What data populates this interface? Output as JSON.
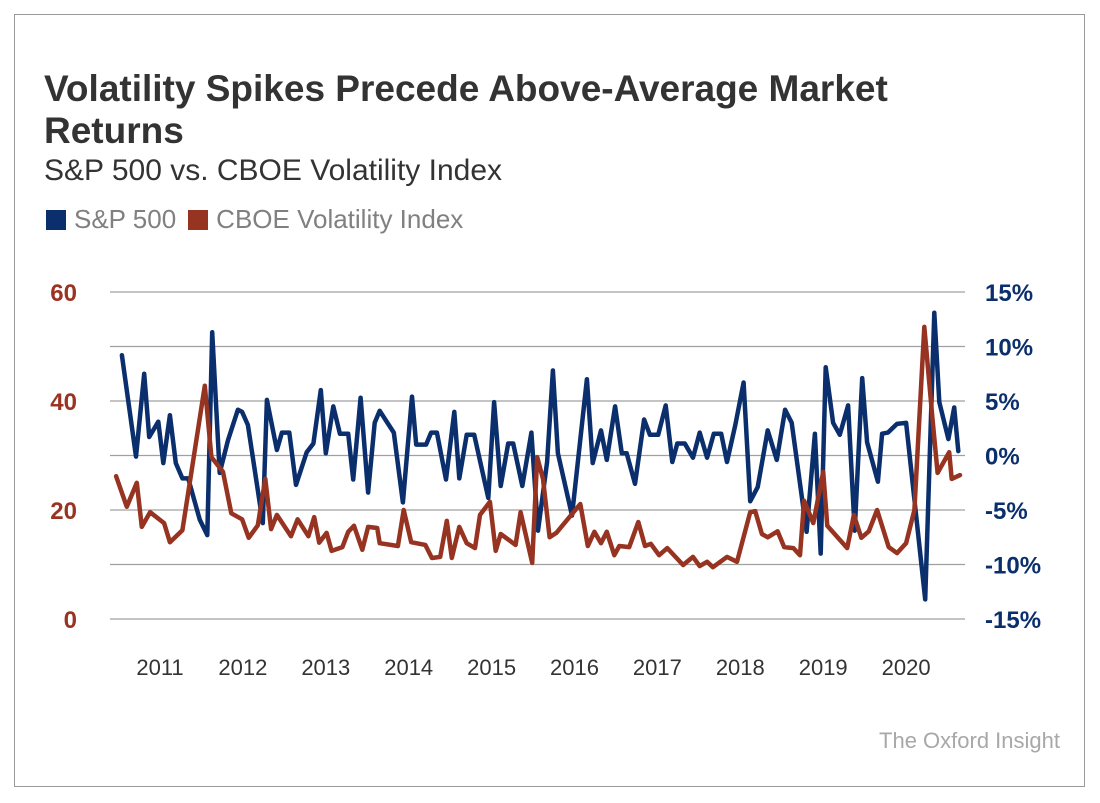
{
  "title": "Volatility Spikes Precede Above-Average Market Returns",
  "subtitle": "S&P 500 vs. CBOE Volatility Index",
  "credit": "The Oxford Insight",
  "colors": {
    "sp500": "#0a2f6c",
    "vix": "#973321",
    "grid": "#a0a0a0"
  },
  "chart_data": {
    "type": "line",
    "title": "Volatility Spikes Precede Above-Average Market Returns",
    "subtitle": "S&P 500 vs. CBOE Volatility Index",
    "legend": {
      "position": "top-left",
      "entries": [
        "S&P 500",
        "CBOE Volatility Index"
      ]
    },
    "grid": true,
    "x_ticks": [
      "2011",
      "2012",
      "2013",
      "2014",
      "2015",
      "2016",
      "2017",
      "2018",
      "2019",
      "2020"
    ],
    "xlim": [
      2010.4,
      2020.7
    ],
    "left_axis": {
      "ylim": [
        0,
        60
      ],
      "ticks": [
        "0",
        "20",
        "40",
        "60"
      ],
      "series": "CBOE Volatility Index"
    },
    "right_axis": {
      "ylim": [
        -15,
        15
      ],
      "ticks": [
        "-15%",
        "-10%",
        "-5%",
        "0%",
        "5%",
        "10%",
        "15%"
      ],
      "series": "S&P 500"
    },
    "series": [
      {
        "name": "S&P 500",
        "axis": "right",
        "unit": "%",
        "x": [
          2010.54,
          2010.71,
          2010.81,
          2010.87,
          2010.98,
          2011.04,
          2011.12,
          2011.19,
          2011.27,
          2011.34,
          2011.48,
          2011.57,
          2011.63,
          2011.72,
          2011.82,
          2011.94,
          2011.99,
          2012.06,
          2012.24,
          2012.29,
          2012.41,
          2012.47,
          2012.56,
          2012.64,
          2012.77,
          2012.85,
          2012.94,
          2013.0,
          2013.09,
          2013.17,
          2013.27,
          2013.33,
          2013.42,
          2013.51,
          2013.59,
          2013.65,
          2013.82,
          2013.93,
          2014.04,
          2014.09,
          2014.21,
          2014.27,
          2014.34,
          2014.45,
          2014.55,
          2014.61,
          2014.7,
          2014.79,
          2014.96,
          2015.03,
          2015.11,
          2015.2,
          2015.26,
          2015.37,
          2015.48,
          2015.56,
          2015.67,
          2015.74,
          2015.8,
          2015.97,
          2016.15,
          2016.22,
          2016.32,
          2016.39,
          2016.49,
          2016.57,
          2016.63,
          2016.73,
          2016.84,
          2016.91,
          2017.01,
          2017.1,
          2017.18,
          2017.24,
          2017.33,
          2017.43,
          2017.51,
          2017.6,
          2017.68,
          2017.77,
          2017.84,
          2017.94,
          2018.04,
          2018.12,
          2018.21,
          2018.33,
          2018.44,
          2018.54,
          2018.62,
          2018.8,
          2018.9,
          2018.97,
          2019.03,
          2019.12,
          2019.2,
          2019.3,
          2019.38,
          2019.47,
          2019.53,
          2019.66,
          2019.71,
          2019.78,
          2019.89,
          2020.0,
          2020.23,
          2020.34,
          2020.4,
          2020.51,
          2020.58,
          2020.63
        ],
        "y": [
          9.2,
          -0.1,
          7.5,
          1.7,
          3.1,
          -0.7,
          3.7,
          -0.7,
          -2.1,
          -2.1,
          -5.9,
          -7.3,
          11.3,
          -1.6,
          1.4,
          4.2,
          4.0,
          2.8,
          -6.2,
          5.1,
          0.5,
          2.1,
          2.1,
          -2.7,
          0.3,
          1.1,
          6.0,
          0.2,
          4.5,
          2.0,
          2.0,
          -2.2,
          5.3,
          -3.4,
          3.0,
          4.1,
          2.1,
          -4.3,
          5.4,
          1.0,
          1.0,
          2.1,
          2.1,
          -2.2,
          4.0,
          -2.1,
          1.9,
          1.9,
          -3.9,
          4.9,
          -2.8,
          1.1,
          1.1,
          -2.8,
          2.1,
          -6.9,
          -0.6,
          7.8,
          0.2,
          -5.5,
          7.0,
          -0.7,
          2.3,
          -0.4,
          4.5,
          0.2,
          0.2,
          -2.6,
          3.3,
          1.9,
          1.9,
          4.6,
          -0.6,
          1.1,
          1.1,
          -0.2,
          2.1,
          -0.2,
          2.0,
          2.0,
          -0.6,
          2.8,
          6.7,
          -4.2,
          -2.9,
          2.3,
          -0.4,
          4.2,
          3.0,
          -7.0,
          2.0,
          -9.0,
          8.1,
          3.0,
          1.9,
          4.6,
          -6.9,
          7.1,
          1.2,
          -2.4,
          2.0,
          2.1,
          2.9,
          3.0,
          -13.2,
          13.1,
          4.9,
          1.5,
          4.4,
          0.4
        ]
      },
      {
        "name": "CBOE Volatility Index",
        "axis": "left",
        "unit": "",
        "x": [
          2010.47,
          2010.6,
          2010.72,
          2010.78,
          2010.88,
          2011.05,
          2011.12,
          2011.27,
          2011.54,
          2011.62,
          2011.76,
          2011.86,
          2011.99,
          2012.07,
          2012.18,
          2012.27,
          2012.34,
          2012.41,
          2012.58,
          2012.66,
          2012.79,
          2012.86,
          2012.92,
          2013.01,
          2013.07,
          2013.2,
          2013.27,
          2013.34,
          2013.44,
          2013.51,
          2013.62,
          2013.65,
          2013.87,
          2013.94,
          2014.03,
          2014.2,
          2014.28,
          2014.38,
          2014.46,
          2014.52,
          2014.61,
          2014.7,
          2014.8,
          2014.86,
          2014.98,
          2015.05,
          2015.11,
          2015.29,
          2015.35,
          2015.49,
          2015.55,
          2015.62,
          2015.7,
          2015.78,
          2016.07,
          2016.16,
          2016.24,
          2016.32,
          2016.39,
          2016.48,
          2016.54,
          2016.66,
          2016.77,
          2016.85,
          2016.92,
          2017.02,
          2017.12,
          2017.31,
          2017.43,
          2017.51,
          2017.6,
          2017.67,
          2017.84,
          2017.96,
          2018.12,
          2018.18,
          2018.26,
          2018.33,
          2018.45,
          2018.53,
          2018.64,
          2018.72,
          2018.77,
          2018.88,
          2019.0,
          2019.05,
          2019.29,
          2019.37,
          2019.46,
          2019.55,
          2019.65,
          2019.79,
          2019.89,
          2020.0,
          2020.1,
          2020.22,
          2020.32,
          2020.38,
          2020.52,
          2020.55,
          2020.65
        ],
        "y": [
          26.2,
          20.6,
          25.0,
          16.9,
          19.6,
          17.6,
          14.1,
          16.3,
          42.8,
          29.7,
          27.0,
          19.4,
          18.3,
          14.9,
          17.2,
          25.7,
          16.5,
          19.1,
          15.2,
          18.3,
          15.2,
          18.7,
          14.0,
          15.8,
          12.5,
          13.2,
          16.0,
          17.1,
          12.7,
          16.9,
          16.7,
          13.9,
          13.4,
          20.0,
          14.1,
          13.6,
          11.2,
          11.4,
          18.0,
          11.2,
          16.9,
          13.9,
          13.0,
          19.1,
          21.5,
          12.5,
          15.6,
          13.6,
          19.6,
          10.3,
          29.7,
          25.7,
          15.0,
          15.8,
          21.1,
          13.4,
          16.0,
          13.9,
          16.0,
          11.7,
          13.4,
          13.2,
          17.8,
          13.4,
          13.8,
          11.7,
          13.0,
          9.9,
          11.4,
          9.7,
          10.5,
          9.5,
          11.4,
          10.5,
          19.6,
          19.8,
          15.6,
          15.0,
          16.1,
          13.2,
          13.0,
          11.7,
          21.7,
          17.6,
          27.0,
          17.1,
          13.0,
          19.1,
          14.9,
          16.1,
          20.0,
          13.2,
          12.1,
          13.9,
          20.0,
          53.6,
          36.5,
          26.8,
          30.6,
          25.7,
          26.4
        ]
      }
    ]
  }
}
